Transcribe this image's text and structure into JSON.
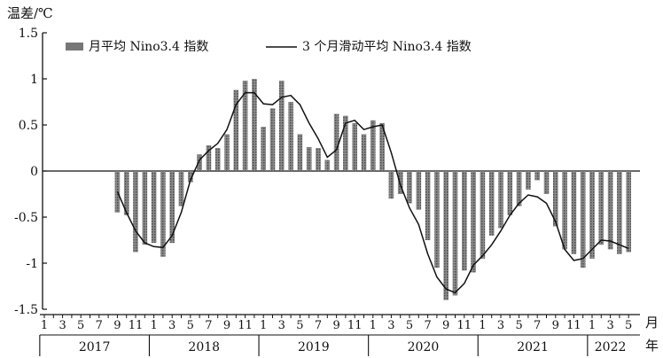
{
  "chart_data": {
    "type": "bar",
    "ylabel": "温差/℃",
    "xlabel_month": "月",
    "xlabel_year": "年",
    "ylim": [
      -1.5,
      1.5
    ],
    "yticks": [
      {
        "value": 1.5,
        "label": "1.5"
      },
      {
        "value": 1,
        "label": "1"
      },
      {
        "value": 0.5,
        "label": "0.5"
      },
      {
        "value": 0,
        "label": "0"
      },
      {
        "value": -0.5,
        "label": "-0.5"
      },
      {
        "value": -1,
        "label": "-1"
      },
      {
        "value": -1.5,
        "label": "-1.5"
      }
    ],
    "month_labels": [
      "1",
      "3",
      "5",
      "7",
      "9",
      "11",
      "1",
      "3",
      "5",
      "7",
      "9",
      "11",
      "1",
      "3",
      "5",
      "7",
      "9",
      "11",
      "1",
      "3",
      "5",
      "7",
      "9",
      "11",
      "1",
      "3",
      "5",
      "7",
      "9",
      "11",
      "1",
      "3",
      "5"
    ],
    "year_labels": [
      {
        "label": "2017",
        "from_month_index": 0,
        "to_month_index": 11
      },
      {
        "label": "2018",
        "from_month_index": 12,
        "to_month_index": 23
      },
      {
        "label": "2019",
        "from_month_index": 24,
        "to_month_index": 35
      },
      {
        "label": "2020",
        "from_month_index": 36,
        "to_month_index": 47
      },
      {
        "label": "2021",
        "from_month_index": 48,
        "to_month_index": 59
      },
      {
        "label": "2022",
        "from_month_index": 60,
        "to_month_index": 64
      }
    ],
    "legend_position": "top",
    "series": [
      {
        "name": "月平均 Nino3.4 指数",
        "style": "bar",
        "x": [
          "2017-09",
          "2017-10",
          "2017-11",
          "2017-12",
          "2018-01",
          "2018-02",
          "2018-03",
          "2018-04",
          "2018-05",
          "2018-06",
          "2018-07",
          "2018-08",
          "2018-09",
          "2018-10",
          "2018-11",
          "2018-12",
          "2019-01",
          "2019-02",
          "2019-03",
          "2019-04",
          "2019-05",
          "2019-06",
          "2019-07",
          "2019-08",
          "2019-09",
          "2019-10",
          "2019-11",
          "2019-12",
          "2020-01",
          "2020-02",
          "2020-03",
          "2020-04",
          "2020-05",
          "2020-06",
          "2020-07",
          "2020-08",
          "2020-09",
          "2020-10",
          "2020-11",
          "2020-12",
          "2021-01",
          "2021-02",
          "2021-03",
          "2021-04",
          "2021-05",
          "2021-06",
          "2021-07",
          "2021-08",
          "2021-09",
          "2021-10",
          "2021-11",
          "2021-12",
          "2022-01",
          "2022-02",
          "2022-03",
          "2022-04",
          "2022-05"
        ],
        "values": [
          -0.45,
          -0.48,
          -0.88,
          -0.8,
          -0.78,
          -0.93,
          -0.78,
          -0.38,
          -0.12,
          0.18,
          0.28,
          0.25,
          0.4,
          0.88,
          0.98,
          1.0,
          0.48,
          0.68,
          0.98,
          0.75,
          0.4,
          0.26,
          0.25,
          0.12,
          0.62,
          0.6,
          0.52,
          0.4,
          0.55,
          0.52,
          -0.3,
          -0.25,
          -0.35,
          -0.42,
          -0.75,
          -1.05,
          -1.4,
          -1.35,
          -1.08,
          -1.1,
          -0.95,
          -0.7,
          -0.62,
          -0.48,
          -0.38,
          -0.2,
          -0.1,
          -0.25,
          -0.6,
          -0.85,
          -0.9,
          -1.05,
          -0.95,
          -0.8,
          -0.85,
          -0.9,
          -0.88
        ]
      },
      {
        "name": "3 个月滑动平均 Nino3.4 指数",
        "style": "line",
        "x": [
          "2017-09",
          "2017-10",
          "2017-11",
          "2017-12",
          "2018-01",
          "2018-02",
          "2018-03",
          "2018-04",
          "2018-05",
          "2018-06",
          "2018-07",
          "2018-08",
          "2018-09",
          "2018-10",
          "2018-11",
          "2018-12",
          "2019-01",
          "2019-02",
          "2019-03",
          "2019-04",
          "2019-05",
          "2019-06",
          "2019-07",
          "2019-08",
          "2019-09",
          "2019-10",
          "2019-11",
          "2019-12",
          "2020-01",
          "2020-02",
          "2020-03",
          "2020-04",
          "2020-05",
          "2020-06",
          "2020-07",
          "2020-08",
          "2020-09",
          "2020-10",
          "2020-11",
          "2020-12",
          "2021-01",
          "2021-02",
          "2021-03",
          "2021-04",
          "2021-05",
          "2021-06",
          "2021-07",
          "2021-08",
          "2021-09",
          "2021-10",
          "2021-11",
          "2021-12",
          "2022-01",
          "2022-02",
          "2022-03",
          "2022-04",
          "2022-05"
        ],
        "values": [
          -0.22,
          -0.45,
          -0.65,
          -0.78,
          -0.82,
          -0.83,
          -0.7,
          -0.45,
          -0.1,
          0.12,
          0.22,
          0.3,
          0.45,
          0.72,
          0.85,
          0.85,
          0.73,
          0.72,
          0.8,
          0.82,
          0.72,
          0.52,
          0.35,
          0.15,
          0.23,
          0.52,
          0.55,
          0.45,
          0.48,
          0.5,
          0.2,
          -0.15,
          -0.4,
          -0.58,
          -0.9,
          -1.15,
          -1.28,
          -1.32,
          -1.22,
          -1.02,
          -0.92,
          -0.8,
          -0.65,
          -0.48,
          -0.35,
          -0.26,
          -0.28,
          -0.35,
          -0.55,
          -0.85,
          -0.97,
          -0.95,
          -0.85,
          -0.75,
          -0.76,
          -0.8,
          -0.84
        ]
      }
    ]
  }
}
